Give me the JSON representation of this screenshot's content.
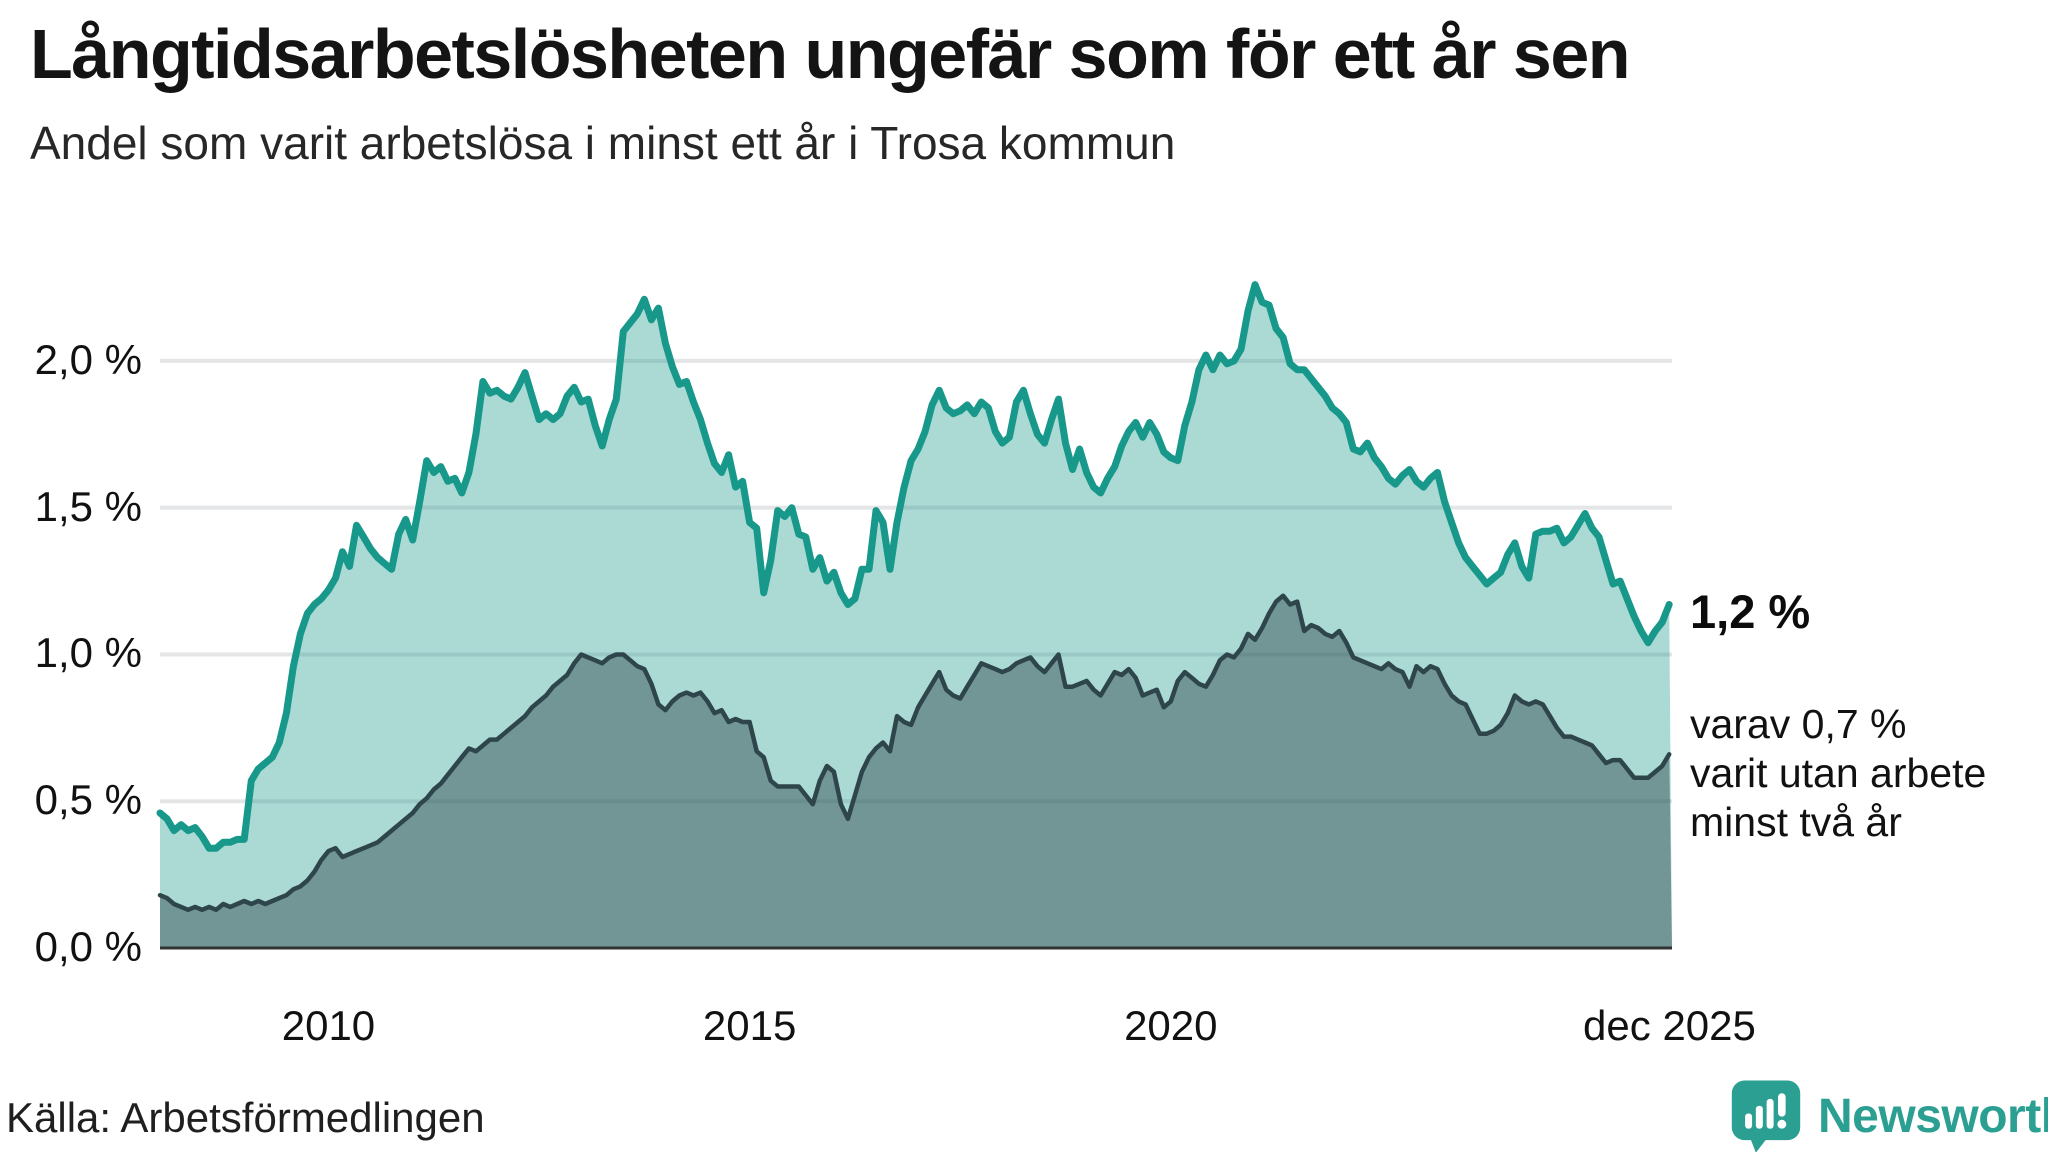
{
  "header": {
    "title": "Långtidsarbetslösheten ungefär som för ett år sen",
    "subtitle": "Andel som varit arbetslösa i minst ett år i Trosa kommun"
  },
  "annotations": {
    "end_value": "1,2 %",
    "note_lines": [
      "varav 0,7 %",
      "varit utan arbete",
      "minst två år"
    ]
  },
  "footer": {
    "source": "Källa: Arbetsförmedlingen",
    "brand": "Newsworthy"
  },
  "colors": {
    "accent_teal": "#17988a",
    "dark_slate": "#2e464b",
    "gridline": "#e4e5e7",
    "axis_line": "#333333",
    "text": "#111111",
    "brand_teal": "#2ba092"
  },
  "chart_data": {
    "type": "area",
    "title": "Långtidsarbetslösheten ungefär som för ett år sen",
    "subtitle": "Andel som varit arbetslösa i minst ett år i Trosa kommun",
    "unit": "%",
    "grid": true,
    "legend": "none",
    "xlim": [
      2008.0,
      2025.95
    ],
    "ylim": [
      0,
      2.48
    ],
    "x_ticks": [
      {
        "label": "2010",
        "year": 2010
      },
      {
        "label": "2015",
        "year": 2015
      },
      {
        "label": "2020",
        "year": 2020
      },
      {
        "label": "dec 2025",
        "year": 2025.92
      }
    ],
    "y_ticks": [
      {
        "label": "0,0 %",
        "value": 0
      },
      {
        "label": "0,5 %",
        "value": 0.5
      },
      {
        "label": "1,0 %",
        "value": 1.0
      },
      {
        "label": "1,5 %",
        "value": 1.5
      },
      {
        "label": "2,0 %",
        "value": 2.0
      }
    ],
    "series": [
      {
        "name": "Arbetslösa minst ett år",
        "end_label": "1,2 %",
        "line_color": "#17988a",
        "fill_color": "rgba(23,152,138,0.36)",
        "line_width": 7,
        "start_year": 2008.0,
        "step_months": 1,
        "values": [
          0.46,
          0.44,
          0.4,
          0.42,
          0.4,
          0.41,
          0.38,
          0.34,
          0.34,
          0.36,
          0.36,
          0.37,
          0.37,
          0.57,
          0.61,
          0.63,
          0.65,
          0.7,
          0.8,
          0.96,
          1.07,
          1.14,
          1.17,
          1.19,
          1.22,
          1.26,
          1.35,
          1.3,
          1.44,
          1.4,
          1.36,
          1.33,
          1.31,
          1.29,
          1.41,
          1.46,
          1.39,
          1.52,
          1.66,
          1.62,
          1.64,
          1.59,
          1.6,
          1.55,
          1.62,
          1.75,
          1.93,
          1.89,
          1.9,
          1.88,
          1.87,
          1.91,
          1.96,
          1.88,
          1.8,
          1.82,
          1.8,
          1.82,
          1.88,
          1.91,
          1.86,
          1.87,
          1.78,
          1.71,
          1.8,
          1.87,
          2.1,
          2.13,
          2.16,
          2.21,
          2.14,
          2.18,
          2.06,
          1.98,
          1.92,
          1.93,
          1.86,
          1.8,
          1.72,
          1.65,
          1.62,
          1.68,
          1.57,
          1.59,
          1.45,
          1.43,
          1.21,
          1.32,
          1.49,
          1.47,
          1.5,
          1.41,
          1.4,
          1.29,
          1.33,
          1.25,
          1.28,
          1.21,
          1.17,
          1.19,
          1.29,
          1.29,
          1.49,
          1.45,
          1.29,
          1.45,
          1.57,
          1.66,
          1.7,
          1.76,
          1.85,
          1.9,
          1.84,
          1.82,
          1.83,
          1.85,
          1.82,
          1.86,
          1.84,
          1.76,
          1.72,
          1.74,
          1.86,
          1.9,
          1.82,
          1.75,
          1.72,
          1.8,
          1.87,
          1.72,
          1.63,
          1.7,
          1.62,
          1.57,
          1.55,
          1.6,
          1.64,
          1.71,
          1.76,
          1.79,
          1.74,
          1.79,
          1.75,
          1.69,
          1.67,
          1.66,
          1.78,
          1.86,
          1.97,
          2.02,
          1.97,
          2.02,
          1.99,
          2.0,
          2.04,
          2.17,
          2.26,
          2.2,
          2.19,
          2.11,
          2.08,
          1.99,
          1.97,
          1.97,
          1.94,
          1.91,
          1.88,
          1.84,
          1.82,
          1.79,
          1.7,
          1.69,
          1.72,
          1.67,
          1.64,
          1.6,
          1.58,
          1.61,
          1.63,
          1.59,
          1.57,
          1.6,
          1.62,
          1.52,
          1.45,
          1.38,
          1.33,
          1.3,
          1.27,
          1.24,
          1.26,
          1.28,
          1.34,
          1.38,
          1.3,
          1.26,
          1.41,
          1.42,
          1.42,
          1.43,
          1.38,
          1.4,
          1.44,
          1.48,
          1.43,
          1.4,
          1.32,
          1.24,
          1.25,
          1.19,
          1.13,
          1.08,
          1.04,
          1.08,
          1.11,
          1.17
        ]
      },
      {
        "name": "Arbetslösa minst två år",
        "end_label": "0,7 %",
        "line_color": "#2e464b",
        "fill_color": "rgba(42,64,68,0.44)",
        "line_width": 4.5,
        "start_year": 2008.0,
        "step_months": 1,
        "values": [
          0.18,
          0.17,
          0.15,
          0.14,
          0.13,
          0.14,
          0.13,
          0.14,
          0.13,
          0.15,
          0.14,
          0.15,
          0.16,
          0.15,
          0.16,
          0.15,
          0.16,
          0.17,
          0.18,
          0.2,
          0.21,
          0.23,
          0.26,
          0.3,
          0.33,
          0.34,
          0.31,
          0.32,
          0.33,
          0.34,
          0.35,
          0.36,
          0.38,
          0.4,
          0.42,
          0.44,
          0.46,
          0.49,
          0.51,
          0.54,
          0.56,
          0.59,
          0.62,
          0.65,
          0.68,
          0.67,
          0.69,
          0.71,
          0.71,
          0.73,
          0.75,
          0.77,
          0.79,
          0.82,
          0.84,
          0.86,
          0.89,
          0.91,
          0.93,
          0.97,
          1.0,
          0.99,
          0.98,
          0.97,
          0.99,
          1.0,
          1.0,
          0.98,
          0.96,
          0.95,
          0.9,
          0.83,
          0.81,
          0.84,
          0.86,
          0.87,
          0.86,
          0.87,
          0.84,
          0.8,
          0.81,
          0.77,
          0.78,
          0.77,
          0.77,
          0.67,
          0.65,
          0.57,
          0.55,
          0.55,
          0.55,
          0.55,
          0.52,
          0.49,
          0.57,
          0.62,
          0.6,
          0.49,
          0.44,
          0.52,
          0.6,
          0.65,
          0.68,
          0.7,
          0.67,
          0.79,
          0.77,
          0.76,
          0.82,
          0.86,
          0.9,
          0.94,
          0.88,
          0.86,
          0.85,
          0.89,
          0.93,
          0.97,
          0.96,
          0.95,
          0.94,
          0.95,
          0.97,
          0.98,
          0.99,
          0.96,
          0.94,
          0.97,
          1.0,
          0.89,
          0.89,
          0.9,
          0.91,
          0.88,
          0.86,
          0.9,
          0.94,
          0.93,
          0.95,
          0.92,
          0.86,
          0.87,
          0.88,
          0.82,
          0.84,
          0.91,
          0.94,
          0.92,
          0.9,
          0.89,
          0.93,
          0.98,
          1.0,
          0.99,
          1.02,
          1.07,
          1.05,
          1.09,
          1.14,
          1.18,
          1.2,
          1.17,
          1.18,
          1.08,
          1.1,
          1.09,
          1.07,
          1.06,
          1.08,
          1.04,
          0.99,
          0.98,
          0.97,
          0.96,
          0.95,
          0.97,
          0.95,
          0.94,
          0.89,
          0.96,
          0.94,
          0.96,
          0.95,
          0.9,
          0.86,
          0.84,
          0.83,
          0.78,
          0.73,
          0.73,
          0.74,
          0.76,
          0.8,
          0.86,
          0.84,
          0.83,
          0.84,
          0.83,
          0.79,
          0.75,
          0.72,
          0.72,
          0.71,
          0.7,
          0.69,
          0.66,
          0.63,
          0.64,
          0.64,
          0.61,
          0.58,
          0.58,
          0.58,
          0.6,
          0.62,
          0.66
        ]
      }
    ]
  }
}
